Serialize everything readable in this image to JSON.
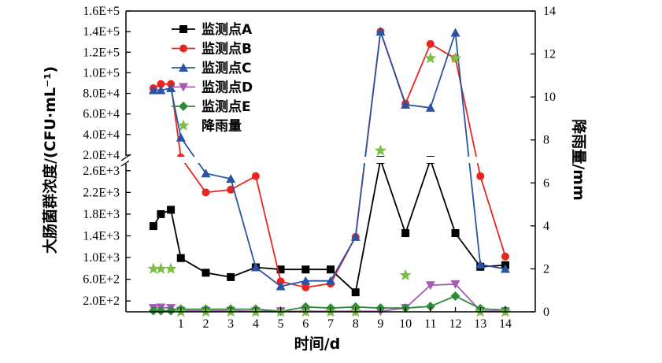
{
  "chart_data": {
    "type": "line",
    "title": "",
    "xlabel": "时间/d",
    "ylabel_left": "大肠菌群浓度/(CFU·mL⁻¹)",
    "ylabel_right": "降雨量/mm",
    "x_ticks": [
      "1",
      "2",
      "3",
      "4",
      "5",
      "6",
      "7",
      "8",
      "9",
      "10",
      "11",
      "12",
      "13",
      "14"
    ],
    "y_left_ticks_lower": [
      "2.0E+2",
      "6.0E+2",
      "1.0E+3",
      "1.4E+3",
      "1.8E+3",
      "2.2E+3",
      "2.6E+3"
    ],
    "y_left_ticks_upper": [
      "2.0E+4",
      "4.0E+4",
      "6.0E+4",
      "8.0E+4",
      "1.0E+5",
      "1.2E+5",
      "1.4E+5",
      "1.6E+5"
    ],
    "y_right_ticks": [
      "0",
      "2",
      "4",
      "6",
      "8",
      "10",
      "12",
      "14"
    ],
    "ylim_left_lower": [
      0,
      2800
    ],
    "ylim_left_upper": [
      20000,
      160000
    ],
    "ylim_right": [
      0,
      14
    ],
    "axis_break": "between 2.6E+3 and 2.0E+4",
    "legend_position": "top-center",
    "series": [
      {
        "name": "监测点A",
        "color": "#000000",
        "marker": "square",
        "x": [
          -0.1,
          0.2,
          0.6,
          1,
          2,
          3,
          4,
          5,
          6,
          7,
          8,
          9,
          10,
          11,
          12,
          13,
          14
        ],
        "y": [
          1580,
          1800,
          1880,
          990,
          720,
          640,
          820,
          780,
          780,
          780,
          360,
          2800,
          1450,
          2800,
          1450,
          830,
          860
        ]
      },
      {
        "name": "监测点B",
        "color": "#e8251f",
        "marker": "circle",
        "x": [
          -0.1,
          0.2,
          0.6,
          1,
          2,
          3,
          4,
          5,
          6,
          7,
          8,
          9,
          10,
          11,
          12,
          13,
          14
        ],
        "y": [
          85000,
          89000,
          89000,
          4100,
          2200,
          2250,
          2500,
          560,
          450,
          520,
          1380,
          140000,
          70000,
          128000,
          114000,
          2500,
          1020
        ]
      },
      {
        "name": "监测点C",
        "color": "#2b53a3",
        "marker": "triangle-up",
        "x": [
          -0.1,
          0.2,
          0.6,
          1,
          2,
          3,
          4,
          5,
          6,
          7,
          8,
          9,
          10,
          11,
          12,
          13,
          14
        ],
        "y": [
          83000,
          83000,
          85000,
          37000,
          2550,
          2450,
          820,
          470,
          570,
          570,
          1380,
          140000,
          69000,
          66000,
          139000,
          870,
          790
        ]
      },
      {
        "name": "监测点D",
        "color": "#a45cb0",
        "marker": "triangle-down",
        "x": [
          -0.1,
          0.2,
          0.6,
          1,
          2,
          3,
          4,
          5,
          6,
          7,
          8,
          9,
          10,
          11,
          12,
          13,
          14
        ],
        "y": [
          70,
          80,
          70,
          20,
          20,
          20,
          10,
          10,
          10,
          10,
          10,
          10,
          70,
          490,
          510,
          20,
          10
        ]
      },
      {
        "name": "监测点E",
        "color": "#2e8b3a",
        "marker": "diamond",
        "x": [
          -0.1,
          0.2,
          0.6,
          1,
          2,
          3,
          4,
          5,
          6,
          7,
          8,
          9,
          10,
          11,
          12,
          13,
          14
        ],
        "y": [
          20,
          20,
          20,
          50,
          50,
          50,
          50,
          10,
          90,
          70,
          90,
          70,
          70,
          100,
          290,
          60,
          30
        ]
      },
      {
        "name": "降雨量",
        "color": "#7ac143",
        "marker": "star",
        "axis": "right",
        "x": [
          -0.1,
          0.2,
          0.6,
          1,
          2,
          3,
          4,
          5,
          6,
          7,
          8,
          9,
          10,
          11,
          12,
          13,
          14
        ],
        "y": [
          2,
          2,
          2,
          0,
          0,
          0,
          0,
          0,
          0,
          0,
          0,
          7.5,
          1.7,
          11.8,
          11.8,
          0,
          0
        ]
      }
    ]
  }
}
